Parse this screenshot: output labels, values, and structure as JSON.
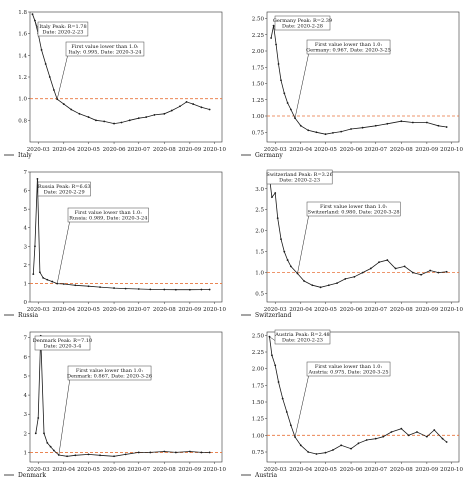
{
  "chart_data": [
    {
      "type": "line",
      "country": "Italy",
      "legend": "Italy",
      "ylim": [
        0.6,
        1.8
      ],
      "yticks": [
        "0.8",
        "1.0",
        "1.2",
        "1.4",
        "1.6",
        "1.8"
      ],
      "ytick_values": [
        0.8,
        1.0,
        1.2,
        1.4,
        1.6,
        1.8
      ],
      "xticks": [
        "2020-03",
        "2020-04",
        "2020-05",
        "2020-06",
        "2020-07",
        "2020-08",
        "2020-09",
        "2020-10"
      ],
      "threshold": 1.0,
      "peak": {
        "date": "2020-02-23",
        "value": 1.78,
        "label_line1": "Italy Peak: R=1.78",
        "label_line2": "Date: 2020-2-23"
      },
      "first_below": {
        "date": "2020-03-24",
        "value": 0.995,
        "label_line1": "First value lower than 1.0:",
        "label_line2": "Italy: 0.995, Date: 2020-3-24"
      },
      "series": [
        {
          "x": [
            "2020-02-23",
            "2020-02-26",
            "2020-03-01",
            "2020-03-05",
            "2020-03-10",
            "2020-03-15",
            "2020-03-20",
            "2020-03-24",
            "2020-04-01",
            "2020-04-10",
            "2020-04-20",
            "2020-05-01",
            "2020-05-10",
            "2020-05-20",
            "2020-06-01",
            "2020-06-10",
            "2020-06-20",
            "2020-07-01",
            "2020-07-10",
            "2020-07-20",
            "2020-08-01",
            "2020-08-10",
            "2020-08-20",
            "2020-08-28",
            "2020-09-05",
            "2020-09-15",
            "2020-09-25"
          ],
          "y": [
            1.78,
            1.72,
            1.6,
            1.45,
            1.32,
            1.2,
            1.08,
            0.995,
            0.95,
            0.9,
            0.86,
            0.83,
            0.8,
            0.79,
            0.77,
            0.78,
            0.8,
            0.82,
            0.83,
            0.85,
            0.86,
            0.89,
            0.93,
            0.97,
            0.95,
            0.92,
            0.9
          ]
        }
      ]
    },
    {
      "type": "line",
      "country": "Germany",
      "legend": "Germany",
      "ylim": [
        0.6,
        2.6
      ],
      "yticks": [
        "0.75",
        "1.00",
        "1.25",
        "1.50",
        "1.75",
        "2.00",
        "2.25",
        "2.50"
      ],
      "ytick_values": [
        0.75,
        1.0,
        1.25,
        1.5,
        1.75,
        2.0,
        2.25,
        2.5
      ],
      "xticks": [
        "2020-03",
        "2020-04",
        "2020-05",
        "2020-06",
        "2020-07",
        "2020-08",
        "2020-09",
        "2020-10"
      ],
      "threshold": 1.0,
      "peak": {
        "date": "2020-02-28",
        "value": 2.39,
        "label_line1": "Germany Peak: R=2.39",
        "label_line2": "Date: 2020-2-28"
      },
      "first_below": {
        "date": "2020-03-25",
        "value": 0.967,
        "label_line1": "First value lower than 1.0:",
        "label_line2": "Germany: 0.967, Date: 2020-3-25"
      },
      "series": [
        {
          "x": [
            "2020-02-25",
            "2020-02-28",
            "2020-03-02",
            "2020-03-05",
            "2020-03-08",
            "2020-03-12",
            "2020-03-16",
            "2020-03-20",
            "2020-03-25",
            "2020-04-01",
            "2020-04-10",
            "2020-04-20",
            "2020-05-01",
            "2020-05-10",
            "2020-05-20",
            "2020-06-01",
            "2020-06-15",
            "2020-07-01",
            "2020-07-15",
            "2020-08-01",
            "2020-08-15",
            "2020-09-01",
            "2020-09-15",
            "2020-09-25"
          ],
          "y": [
            2.2,
            2.39,
            2.1,
            1.8,
            1.55,
            1.35,
            1.2,
            1.1,
            0.967,
            0.85,
            0.78,
            0.75,
            0.72,
            0.74,
            0.76,
            0.8,
            0.82,
            0.85,
            0.88,
            0.92,
            0.9,
            0.9,
            0.85,
            0.83
          ]
        }
      ]
    },
    {
      "type": "line",
      "country": "Russia",
      "legend": "Russia",
      "ylim": [
        0,
        7
      ],
      "yticks": [
        "0",
        "1",
        "2",
        "3",
        "4",
        "5",
        "6",
        "7"
      ],
      "ytick_values": [
        0,
        1,
        2,
        3,
        4,
        5,
        6,
        7
      ],
      "xticks": [
        "2020-03",
        "2020-04",
        "2020-05",
        "2020-06",
        "2020-07",
        "2020-08",
        "2020-09",
        "2020-10"
      ],
      "threshold": 1.0,
      "peak": {
        "date": "2020-02-29",
        "value": 6.63,
        "label_line1": "Russia Peak: R=6.63",
        "label_line2": "Date: 2020-2-29"
      },
      "first_below": {
        "date": "2020-03-24",
        "value": 0.989,
        "label_line1": "First value lower than 1.0:",
        "label_line2": "Russia: 0.989, Date: 2020-3-24"
      },
      "series": [
        {
          "x": [
            "2020-02-24",
            "2020-02-26",
            "2020-02-29",
            "2020-03-03",
            "2020-03-07",
            "2020-03-12",
            "2020-03-18",
            "2020-03-24",
            "2020-04-01",
            "2020-04-15",
            "2020-05-01",
            "2020-05-15",
            "2020-06-01",
            "2020-06-15",
            "2020-07-01",
            "2020-07-15",
            "2020-08-01",
            "2020-08-15",
            "2020-09-01",
            "2020-09-15",
            "2020-09-25"
          ],
          "y": [
            1.5,
            3.0,
            6.63,
            1.6,
            1.3,
            1.2,
            1.1,
            0.989,
            0.97,
            0.9,
            0.85,
            0.8,
            0.75,
            0.72,
            0.7,
            0.68,
            0.67,
            0.66,
            0.66,
            0.67,
            0.67
          ]
        }
      ]
    },
    {
      "type": "line",
      "country": "Switzerland",
      "legend": "Switzerland",
      "ylim": [
        0.3,
        3.4
      ],
      "yticks": [
        "0.5",
        "1.0",
        "1.5",
        "2.0",
        "2.5",
        "3.0"
      ],
      "ytick_values": [
        0.5,
        1.0,
        1.5,
        2.0,
        2.5,
        3.0
      ],
      "xticks": [
        "2020-03",
        "2020-04",
        "2020-05",
        "2020-06",
        "2020-07",
        "2020-08",
        "2020-09",
        "2020-10"
      ],
      "threshold": 1.0,
      "peak": {
        "date": "2020-02-23",
        "value": 3.26,
        "label_line1": "Switzerland Peak: R=3.26",
        "label_line2": "Date: 2020-2-23"
      },
      "first_below": {
        "date": "2020-03-28",
        "value": 0.98,
        "label_line1": "First value lower than 1.0:",
        "label_line2": "Switzerland: 0.980, Date: 2020-3-28"
      },
      "series": [
        {
          "x": [
            "2020-02-23",
            "2020-02-26",
            "2020-03-01",
            "2020-03-04",
            "2020-03-08",
            "2020-03-12",
            "2020-03-16",
            "2020-03-20",
            "2020-03-28",
            "2020-04-05",
            "2020-04-15",
            "2020-04-25",
            "2020-05-05",
            "2020-05-15",
            "2020-05-25",
            "2020-06-05",
            "2020-06-15",
            "2020-06-25",
            "2020-07-05",
            "2020-07-15",
            "2020-07-25",
            "2020-08-05",
            "2020-08-15",
            "2020-08-25",
            "2020-09-05",
            "2020-09-15",
            "2020-09-25"
          ],
          "y": [
            3.26,
            2.8,
            2.9,
            2.3,
            1.8,
            1.5,
            1.3,
            1.15,
            0.98,
            0.8,
            0.7,
            0.65,
            0.7,
            0.75,
            0.85,
            0.9,
            1.0,
            1.1,
            1.25,
            1.3,
            1.1,
            1.15,
            1.0,
            0.95,
            1.05,
            1.0,
            1.02
          ]
        }
      ]
    },
    {
      "type": "line",
      "country": "Denmark",
      "legend": "Denmark",
      "ylim": [
        0.5,
        7.3
      ],
      "yticks": [
        "1",
        "2",
        "3",
        "4",
        "5",
        "6",
        "7"
      ],
      "ytick_values": [
        1,
        2,
        3,
        4,
        5,
        6,
        7
      ],
      "xticks": [
        "2020-03",
        "2020-04",
        "2020-05",
        "2020-06",
        "2020-07",
        "2020-08",
        "2020-09",
        "2020-10"
      ],
      "threshold": 1.0,
      "peak": {
        "date": "2020-03-04",
        "value": 7.1,
        "label_line1": "Denmark Peak: R=7.10",
        "label_line2": "Date: 2020-3-4"
      },
      "first_below": {
        "date": "2020-03-26",
        "value": 0.867,
        "label_line1": "First value lower than 1.0:",
        "label_line2": "Denmark: 0.867, Date: 2020-3-26"
      },
      "series": [
        {
          "x": [
            "2020-02-27",
            "2020-03-01",
            "2020-03-04",
            "2020-03-08",
            "2020-03-12",
            "2020-03-16",
            "2020-03-20",
            "2020-03-26",
            "2020-04-05",
            "2020-04-15",
            "2020-05-01",
            "2020-05-15",
            "2020-06-01",
            "2020-06-15",
            "2020-07-01",
            "2020-07-15",
            "2020-08-01",
            "2020-08-15",
            "2020-09-01",
            "2020-09-15",
            "2020-09-25"
          ],
          "y": [
            2.0,
            2.8,
            7.1,
            2.0,
            1.5,
            1.3,
            1.1,
            0.867,
            0.8,
            0.85,
            0.9,
            0.85,
            0.8,
            0.9,
            1.0,
            1.0,
            1.05,
            1.0,
            1.05,
            1.0,
            1.0
          ]
        }
      ]
    },
    {
      "type": "line",
      "country": "Austria",
      "legend": "Austria",
      "ylim": [
        0.6,
        2.55
      ],
      "yticks": [
        "0.75",
        "1.00",
        "1.25",
        "1.50",
        "1.75",
        "2.00",
        "2.25",
        "2.50"
      ],
      "ytick_values": [
        0.75,
        1.0,
        1.25,
        1.5,
        1.75,
        2.0,
        2.25,
        2.5
      ],
      "xticks": [
        "2020-03",
        "2020-04",
        "2020-05",
        "2020-06",
        "2020-07",
        "2020-08",
        "2020-09",
        "2020-10"
      ],
      "threshold": 1.0,
      "peak": {
        "date": "2020-02-23",
        "value": 2.48,
        "label_line1": "Austria Peak: R=2.48",
        "label_line2": "Date: 2020-2-23"
      },
      "first_below": {
        "date": "2020-03-25",
        "value": 0.975,
        "label_line1": "First value lower than 1.0:",
        "label_line2": "Austria: 0.975, Date: 2020-3-25"
      },
      "series": [
        {
          "x": [
            "2020-02-23",
            "2020-02-26",
            "2020-03-01",
            "2020-03-05",
            "2020-03-10",
            "2020-03-15",
            "2020-03-20",
            "2020-03-25",
            "2020-04-01",
            "2020-04-10",
            "2020-04-20",
            "2020-05-01",
            "2020-05-10",
            "2020-05-20",
            "2020-06-01",
            "2020-06-10",
            "2020-06-20",
            "2020-07-01",
            "2020-07-10",
            "2020-07-20",
            "2020-08-01",
            "2020-08-10",
            "2020-08-20",
            "2020-09-01",
            "2020-09-10",
            "2020-09-20",
            "2020-09-25"
          ],
          "y": [
            2.48,
            2.2,
            2.05,
            1.8,
            1.55,
            1.35,
            1.15,
            0.975,
            0.85,
            0.75,
            0.72,
            0.74,
            0.78,
            0.85,
            0.8,
            0.88,
            0.93,
            0.95,
            0.98,
            1.05,
            1.1,
            1.0,
            1.05,
            0.98,
            1.08,
            0.95,
            0.9
          ]
        }
      ]
    }
  ],
  "colors": {
    "series": "#1a1a1a",
    "threshold": "#e8743b",
    "axis": "#333333"
  }
}
